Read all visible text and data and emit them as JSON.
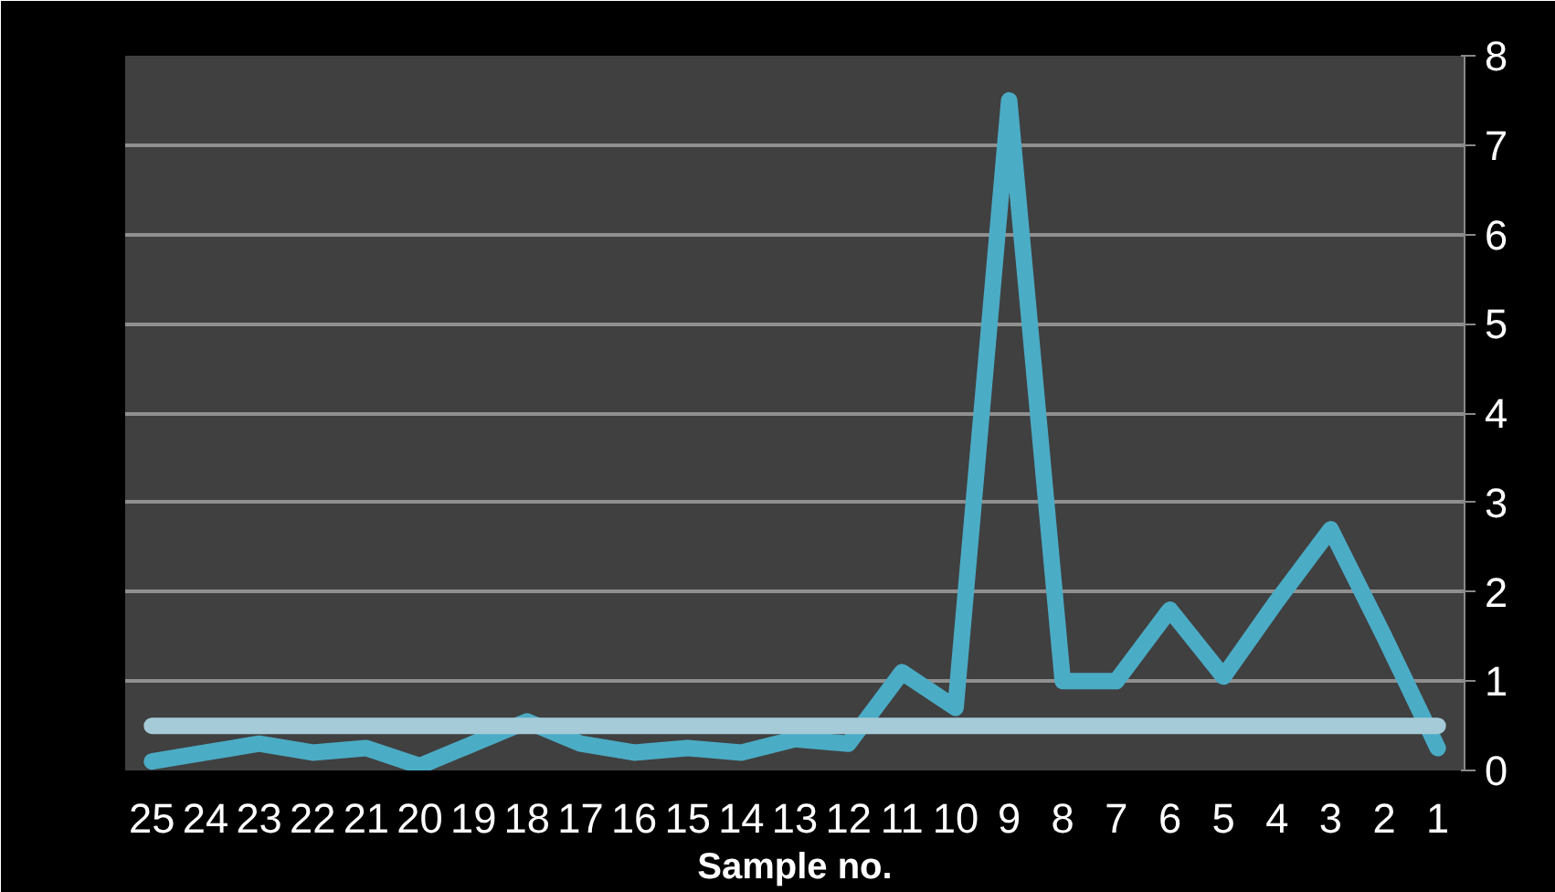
{
  "chart_data": {
    "type": "line",
    "xlabel": "Sample no.",
    "categories": [
      "25",
      "24",
      "23",
      "22",
      "21",
      "20",
      "19",
      "18",
      "17",
      "16",
      "15",
      "14",
      "13",
      "12",
      "11",
      "10",
      "9",
      "8",
      "7",
      "6",
      "5",
      "4",
      "3",
      "2",
      "1"
    ],
    "series": [
      {
        "color": "#4bacc6",
        "values": [
          0.1,
          0.2,
          0.3,
          0.2,
          0.25,
          0.05,
          0.3,
          0.55,
          0.3,
          0.2,
          0.25,
          0.2,
          0.35,
          0.3,
          1.1,
          0.7,
          7.5,
          1.0,
          1.0,
          1.8,
          1.05,
          1.9,
          2.7,
          1.5,
          0.25
        ]
      },
      {
        "color": "#a5cbd8",
        "values": [
          0.5,
          0.5,
          0.5,
          0.5,
          0.5,
          0.5,
          0.5,
          0.5,
          0.5,
          0.5,
          0.5,
          0.5,
          0.5,
          0.5,
          0.5,
          0.5,
          0.5,
          0.5,
          0.5,
          0.5,
          0.5,
          0.5,
          0.5,
          0.5,
          0.5
        ]
      }
    ],
    "ylim": [
      0,
      8
    ],
    "yticks": [
      0,
      1,
      2,
      3,
      4,
      5,
      6,
      7,
      8
    ],
    "grid": "y",
    "marker": "none",
    "line_style": "solid"
  }
}
